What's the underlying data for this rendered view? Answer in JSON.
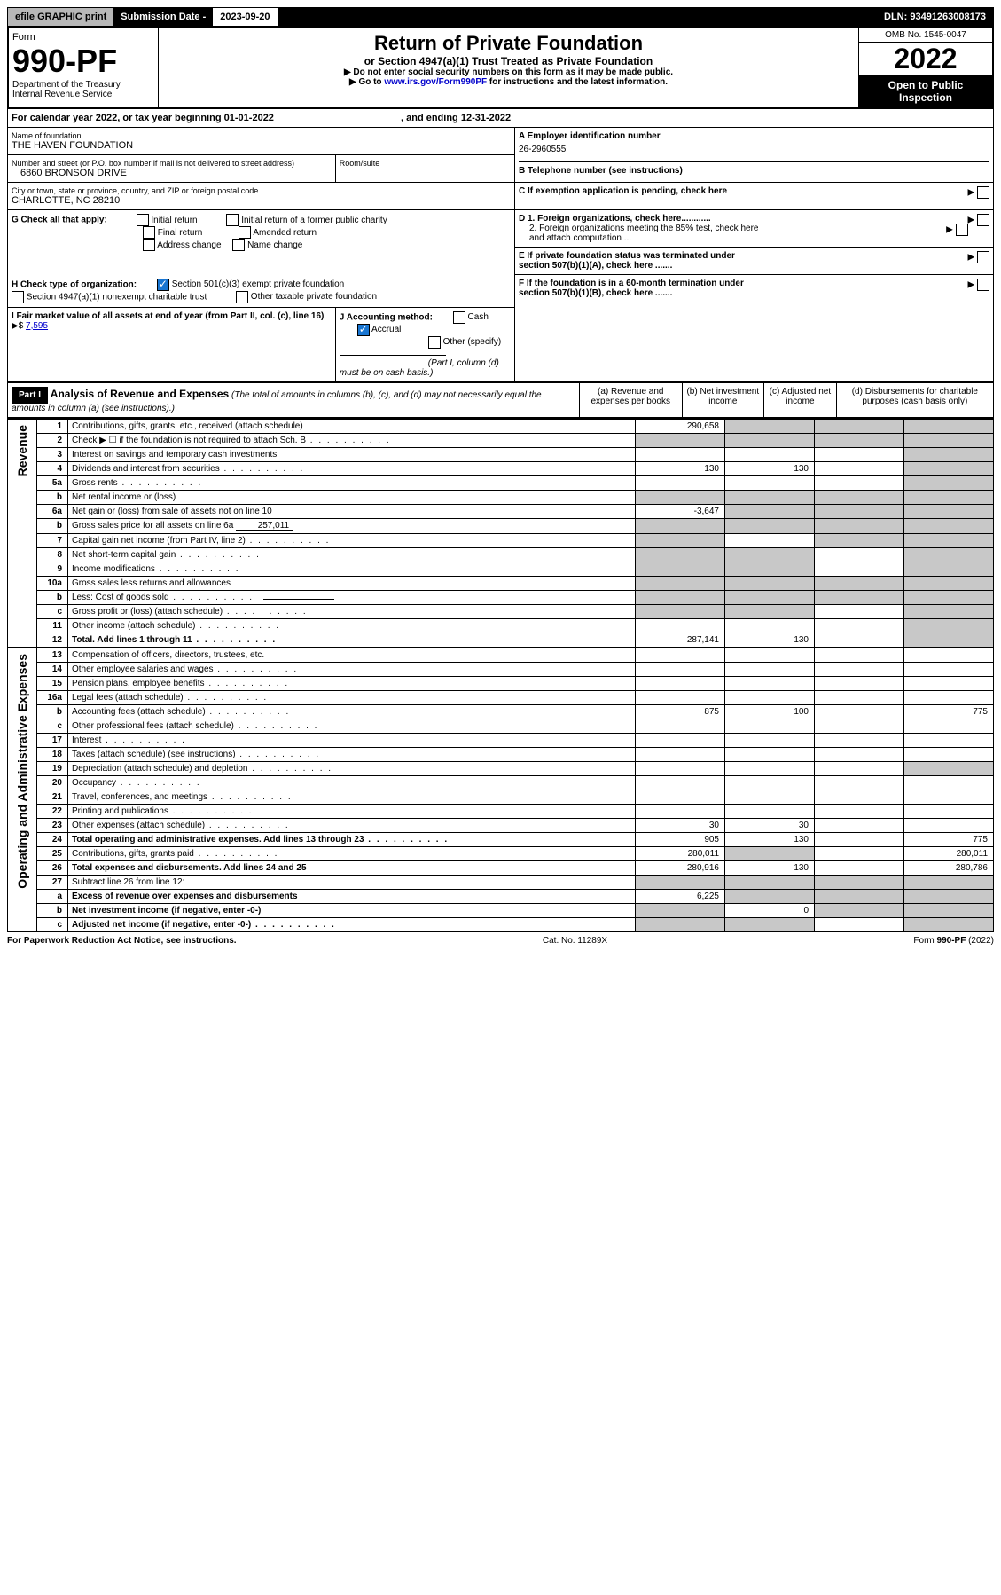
{
  "topbar": {
    "efile": "efile GRAPHIC print",
    "submission_label": "Submission Date - ",
    "submission_date": "2023-09-20",
    "dln": "DLN: 93491263008173"
  },
  "header": {
    "form_label": "Form",
    "form_number": "990-PF",
    "dept": "Department of the Treasury",
    "irs": "Internal Revenue Service",
    "title": "Return of Private Foundation",
    "subtitle": "or Section 4947(a)(1) Trust Treated as Private Foundation",
    "notice1": "▶ Do not enter social security numbers on this form as it may be made public.",
    "notice2_pre": "▶ Go to ",
    "notice2_link": "www.irs.gov/Form990PF",
    "notice2_post": " for instructions and the latest information.",
    "omb": "OMB No. 1545-0047",
    "year": "2022",
    "open": "Open to Public Inspection"
  },
  "calyear": {
    "pre": "For calendar year 2022, or tax year beginning ",
    "begin": "01-01-2022",
    "mid": " , and ending ",
    "end": "12-31-2022"
  },
  "info": {
    "name_label": "Name of foundation",
    "name": "THE HAVEN FOUNDATION",
    "addr_label": "Number and street (or P.O. box number if mail is not delivered to street address)",
    "addr": "6860 BRONSON DRIVE",
    "room_label": "Room/suite",
    "room": "",
    "city_label": "City or town, state or province, country, and ZIP or foreign postal code",
    "city": "CHARLOTTE, NC  28210",
    "ein_label": "A Employer identification number",
    "ein": "26-2960555",
    "phone_label": "B Telephone number (see instructions)",
    "phone": "",
    "c_label": "C If exemption application is pending, check here",
    "d1": "D 1. Foreign organizations, check here............",
    "d2": "2. Foreign organizations meeting the 85% test, check here and attach computation ...",
    "e_label": "E  If private foundation status was terminated under section 507(b)(1)(A), check here .......",
    "f_label": "F  If the foundation is in a 60-month termination under section 507(b)(1)(B), check here .......",
    "g_label": "G Check all that apply:",
    "g_opts": [
      "Initial return",
      "Final return",
      "Address change",
      "Initial return of a former public charity",
      "Amended return",
      "Name change"
    ],
    "h_label": "H Check type of organization:",
    "h1": "Section 501(c)(3) exempt private foundation",
    "h2": "Section 4947(a)(1) nonexempt charitable trust",
    "h3": "Other taxable private foundation",
    "i_label": "I Fair market value of all assets at end of year (from Part II, col. (c), line 16)",
    "i_val": "7,595",
    "j_label": "J Accounting method:",
    "j_cash": "Cash",
    "j_accrual": "Accrual",
    "j_other": "Other (specify)",
    "j_note": "(Part I, column (d) must be on cash basis.)"
  },
  "part1": {
    "label": "Part I",
    "title": "Analysis of Revenue and Expenses",
    "title_note": " (The total of amounts in columns (b), (c), and (d) may not necessarily equal the amounts in column (a) (see instructions).)",
    "col_a": "(a)   Revenue and expenses per books",
    "col_b": "(b)  Net investment income",
    "col_c": "(c)  Adjusted net income",
    "col_d": "(d)  Disbursements for charitable purposes (cash basis only)"
  },
  "sidelabels": {
    "revenue": "Revenue",
    "expenses": "Operating and Administrative Expenses"
  },
  "rows": [
    {
      "n": "1",
      "t": "Contributions, gifts, grants, etc., received (attach schedule)",
      "a": "290,658",
      "b": "g",
      "c": "g",
      "d": "g"
    },
    {
      "n": "2",
      "t": "Check ▶ ☐ if the foundation is not required to attach Sch. B",
      "a": "g",
      "b": "g",
      "c": "g",
      "d": "g",
      "dots": true
    },
    {
      "n": "3",
      "t": "Interest on savings and temporary cash investments",
      "a": "",
      "b": "",
      "c": "",
      "d": "g"
    },
    {
      "n": "4",
      "t": "Dividends and interest from securities",
      "a": "130",
      "b": "130",
      "c": "",
      "d": "g",
      "dots": true
    },
    {
      "n": "5a",
      "t": "Gross rents",
      "a": "",
      "b": "",
      "c": "",
      "d": "g",
      "dots": true
    },
    {
      "n": "b",
      "t": "Net rental income or (loss)",
      "a": "g",
      "b": "g",
      "c": "g",
      "d": "g",
      "inline": true
    },
    {
      "n": "6a",
      "t": "Net gain or (loss) from sale of assets not on line 10",
      "a": "-3,647",
      "b": "g",
      "c": "g",
      "d": "g"
    },
    {
      "n": "b",
      "t": "Gross sales price for all assets on line 6a",
      "a": "g",
      "b": "g",
      "c": "g",
      "d": "g",
      "inline": true,
      "inlineval": "257,011"
    },
    {
      "n": "7",
      "t": "Capital gain net income (from Part IV, line 2)",
      "a": "g",
      "b": "",
      "c": "g",
      "d": "g",
      "dots": true
    },
    {
      "n": "8",
      "t": "Net short-term capital gain",
      "a": "g",
      "b": "g",
      "c": "",
      "d": "g",
      "dots": true
    },
    {
      "n": "9",
      "t": "Income modifications",
      "a": "g",
      "b": "g",
      "c": "",
      "d": "g",
      "dots": true
    },
    {
      "n": "10a",
      "t": "Gross sales less returns and allowances",
      "a": "g",
      "b": "g",
      "c": "g",
      "d": "g",
      "inline": true
    },
    {
      "n": "b",
      "t": "Less: Cost of goods sold",
      "a": "g",
      "b": "g",
      "c": "g",
      "d": "g",
      "inline": true,
      "dots": true
    },
    {
      "n": "c",
      "t": "Gross profit or (loss) (attach schedule)",
      "a": "g",
      "b": "g",
      "c": "",
      "d": "g",
      "dots": true
    },
    {
      "n": "11",
      "t": "Other income (attach schedule)",
      "a": "",
      "b": "",
      "c": "",
      "d": "g",
      "dots": true
    },
    {
      "n": "12",
      "t": "Total. Add lines 1 through 11",
      "a": "287,141",
      "b": "130",
      "c": "",
      "d": "g",
      "bold": true,
      "dots": true
    }
  ],
  "exprows": [
    {
      "n": "13",
      "t": "Compensation of officers, directors, trustees, etc.",
      "a": "",
      "b": "",
      "c": "",
      "d": ""
    },
    {
      "n": "14",
      "t": "Other employee salaries and wages",
      "a": "",
      "b": "",
      "c": "",
      "d": "",
      "dots": true
    },
    {
      "n": "15",
      "t": "Pension plans, employee benefits",
      "a": "",
      "b": "",
      "c": "",
      "d": "",
      "dots": true
    },
    {
      "n": "16a",
      "t": "Legal fees (attach schedule)",
      "a": "",
      "b": "",
      "c": "",
      "d": "",
      "dots": true
    },
    {
      "n": "b",
      "t": "Accounting fees (attach schedule)",
      "a": "875",
      "b": "100",
      "c": "",
      "d": "775",
      "dots": true
    },
    {
      "n": "c",
      "t": "Other professional fees (attach schedule)",
      "a": "",
      "b": "",
      "c": "",
      "d": "",
      "dots": true
    },
    {
      "n": "17",
      "t": "Interest",
      "a": "",
      "b": "",
      "c": "",
      "d": "",
      "dots": true
    },
    {
      "n": "18",
      "t": "Taxes (attach schedule) (see instructions)",
      "a": "",
      "b": "",
      "c": "",
      "d": "",
      "dots": true
    },
    {
      "n": "19",
      "t": "Depreciation (attach schedule) and depletion",
      "a": "",
      "b": "",
      "c": "",
      "d": "g",
      "dots": true
    },
    {
      "n": "20",
      "t": "Occupancy",
      "a": "",
      "b": "",
      "c": "",
      "d": "",
      "dots": true
    },
    {
      "n": "21",
      "t": "Travel, conferences, and meetings",
      "a": "",
      "b": "",
      "c": "",
      "d": "",
      "dots": true
    },
    {
      "n": "22",
      "t": "Printing and publications",
      "a": "",
      "b": "",
      "c": "",
      "d": "",
      "dots": true
    },
    {
      "n": "23",
      "t": "Other expenses (attach schedule)",
      "a": "30",
      "b": "30",
      "c": "",
      "d": "",
      "dots": true
    },
    {
      "n": "24",
      "t": "Total operating and administrative expenses. Add lines 13 through 23",
      "a": "905",
      "b": "130",
      "c": "",
      "d": "775",
      "bold": true,
      "dots": true
    },
    {
      "n": "25",
      "t": "Contributions, gifts, grants paid",
      "a": "280,011",
      "b": "g",
      "c": "",
      "d": "280,011",
      "dots": true
    },
    {
      "n": "26",
      "t": "Total expenses and disbursements. Add lines 24 and 25",
      "a": "280,916",
      "b": "130",
      "c": "",
      "d": "280,786",
      "bold": true
    },
    {
      "n": "27",
      "t": "Subtract line 26 from line 12:",
      "a": "g",
      "b": "g",
      "c": "g",
      "d": "g"
    },
    {
      "n": "a",
      "t": "Excess of revenue over expenses and disbursements",
      "a": "6,225",
      "b": "g",
      "c": "g",
      "d": "g",
      "bold": true
    },
    {
      "n": "b",
      "t": "Net investment income (if negative, enter -0-)",
      "a": "g",
      "b": "0",
      "c": "g",
      "d": "g",
      "bold": true
    },
    {
      "n": "c",
      "t": "Adjusted net income (if negative, enter -0-)",
      "a": "g",
      "b": "g",
      "c": "",
      "d": "g",
      "bold": true,
      "dots": true
    }
  ],
  "footer": {
    "left": "For Paperwork Reduction Act Notice, see instructions.",
    "mid": "Cat. No. 11289X",
    "right": "Form 990-PF (2022)"
  }
}
